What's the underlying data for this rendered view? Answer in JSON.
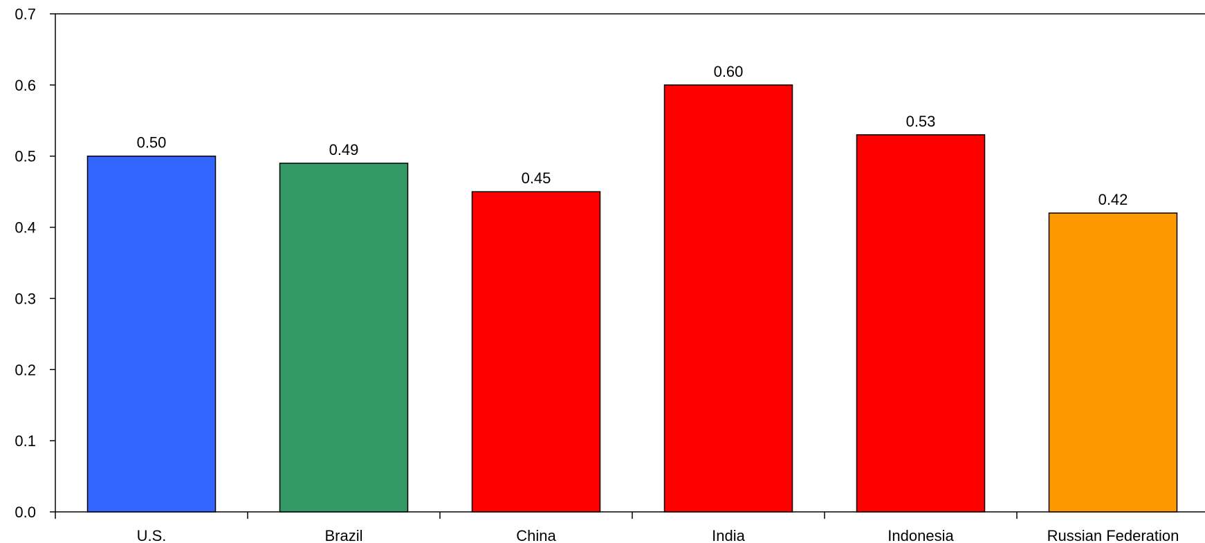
{
  "chart_data": {
    "type": "bar",
    "title": "",
    "xlabel": "",
    "ylabel": "",
    "categories": [
      "U.S.",
      "Brazil",
      "China",
      "India",
      "Indonesia",
      "Russian Federation"
    ],
    "values": [
      0.5,
      0.49,
      0.45,
      0.6,
      0.53,
      0.42
    ],
    "data_labels": [
      "0.50",
      "0.49",
      "0.45",
      "0.60",
      "0.53",
      "0.42"
    ],
    "bar_colors": [
      "#3366FF",
      "#339966",
      "#FF0000",
      "#FF0000",
      "#FF0000",
      "#FF9900"
    ],
    "ylim": [
      0,
      0.7
    ],
    "y_ticks": [
      "0.0",
      "0.1",
      "0.2",
      "0.3",
      "0.4",
      "0.5",
      "0.6",
      "0.7"
    ],
    "grid": false,
    "legend": "none"
  }
}
